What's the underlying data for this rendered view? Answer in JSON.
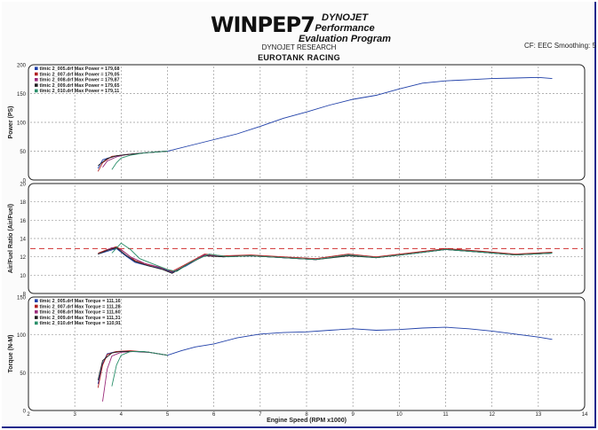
{
  "header": {
    "brand": "WINPEP7",
    "tagline_1": "DYNOJET Performance",
    "tagline_2": "Evaluation Program",
    "research": "DYNOJET RESEARCH",
    "company": "EUROTANK RACING",
    "correction": "CF: EEC  Smoothing: 5"
  },
  "chart_data": [
    {
      "type": "line",
      "ylabel": "Power (PS)",
      "ylim": [
        0,
        200
      ],
      "yticks": [
        "0",
        "50",
        "100",
        "150",
        "200"
      ],
      "grid": true,
      "legend_position": "top-left",
      "legend": [
        {
          "label": "tlmic 2_005.drf Max Power = 179,68",
          "color": "#1f3fa8"
        },
        {
          "label": "tlmic 2_007.drf Max Power = 179,05",
          "color": "#b02020"
        },
        {
          "label": "tlmic 2_008.drf Max Power = 179,87",
          "color": "#9b2a7a"
        },
        {
          "label": "tlmic 2_009.drf Max Power = 179,65",
          "color": "#202020"
        },
        {
          "label": "tlmic 2_010.drf Max Power = 179,11",
          "color": "#2a8f6a"
        }
      ],
      "series": [
        {
          "name": "tlmic 2_005.drf",
          "color": "#1f3fa8",
          "x": [
            3.5,
            3.6,
            3.8,
            4.0,
            4.5,
            5.0,
            5.5,
            6.0,
            6.5,
            7.0,
            7.5,
            8.0,
            8.5,
            9.0,
            9.5,
            10.0,
            10.5,
            11.0,
            11.5,
            12.0,
            12.5,
            13.0,
            13.3
          ],
          "y": [
            20,
            35,
            40,
            43,
            47,
            50,
            60,
            70,
            80,
            93,
            107,
            118,
            130,
            140,
            147,
            158,
            168,
            172,
            174,
            176,
            177,
            178,
            176
          ]
        },
        {
          "name": "tlmic 2_007.drf",
          "color": "#b02020",
          "x": [
            3.5,
            3.6,
            3.8,
            4.0,
            4.5,
            5.0
          ],
          "y": [
            15,
            30,
            41,
            43,
            47,
            50
          ]
        },
        {
          "name": "tlmic 2_008.drf",
          "color": "#9b2a7a",
          "x": [
            3.6,
            3.7,
            3.9,
            4.1,
            4.5,
            5.0
          ],
          "y": [
            22,
            33,
            40,
            44,
            47,
            50
          ]
        },
        {
          "name": "tlmic 2_009.drf",
          "color": "#202020",
          "x": [
            3.5,
            3.7,
            3.9,
            4.1,
            4.5,
            5.0
          ],
          "y": [
            25,
            37,
            42,
            44,
            47,
            50
          ]
        },
        {
          "name": "tlmic 2_010.drf",
          "color": "#2a8f6a",
          "x": [
            3.8,
            3.9,
            4.0,
            4.2,
            4.5,
            5.0
          ],
          "y": [
            18,
            30,
            38,
            43,
            47,
            50
          ]
        }
      ]
    },
    {
      "type": "line",
      "ylabel": "Air/Fuel Ratio (Air/Fuel)",
      "ylim": [
        8,
        20
      ],
      "yticks": [
        "8",
        "10",
        "12",
        "14",
        "16",
        "18",
        "20"
      ],
      "reference_line": 12.9,
      "grid": true,
      "series": [
        {
          "name": "tlmic 2_005.drf",
          "color": "#1f3fa8",
          "x": [
            3.5,
            3.7,
            3.9,
            4.1,
            4.3,
            4.6,
            4.9,
            5.1,
            5.4,
            5.8,
            6.2,
            6.8,
            7.5,
            8.2,
            8.9,
            9.5,
            10.2,
            11.0,
            11.8,
            12.5,
            13.3
          ],
          "y": [
            12.3,
            12.6,
            12.9,
            12.1,
            11.4,
            11.0,
            10.7,
            10.3,
            11.0,
            12.2,
            12.0,
            12.1,
            11.9,
            11.7,
            12.2,
            11.9,
            12.3,
            12.8,
            12.5,
            12.2,
            12.4
          ]
        },
        {
          "name": "tlmic 2_007.drf",
          "color": "#b02020",
          "x": [
            3.5,
            3.7,
            3.9,
            4.1,
            4.3,
            4.6,
            4.9,
            5.1,
            5.4,
            5.8,
            6.2,
            6.8,
            7.5,
            8.2,
            8.9,
            9.5,
            10.2,
            11.0,
            11.8,
            12.5,
            13.3
          ],
          "y": [
            12.4,
            12.8,
            13.1,
            12.4,
            11.6,
            11.1,
            10.8,
            10.4,
            11.2,
            12.3,
            12.1,
            12.2,
            12.0,
            11.8,
            12.3,
            12.0,
            12.4,
            12.9,
            12.6,
            12.3,
            12.5
          ]
        },
        {
          "name": "tlmic 2_008.drf",
          "color": "#9b2a7a",
          "x": [
            3.6,
            3.8,
            4.0,
            4.2,
            4.5,
            4.8,
            5.1,
            5.4,
            5.8,
            6.2,
            6.8,
            7.5,
            8.2,
            8.9,
            9.5,
            10.2,
            11.0,
            11.8,
            12.5,
            13.3
          ],
          "y": [
            12.5,
            13.0,
            12.8,
            12.0,
            11.3,
            10.9,
            10.2,
            11.1,
            12.2,
            12.0,
            12.1,
            11.9,
            11.7,
            12.2,
            11.9,
            12.3,
            12.8,
            12.5,
            12.2,
            12.4
          ]
        },
        {
          "name": "tlmic 2_009.drf",
          "color": "#202020",
          "x": [
            3.5,
            3.7,
            3.9,
            4.1,
            4.3,
            4.6,
            4.9,
            5.1,
            5.4,
            5.8,
            6.2,
            6.8,
            7.5,
            8.2,
            8.9,
            9.5,
            10.2,
            11.0,
            11.8,
            12.5,
            13.3
          ],
          "y": [
            12.3,
            12.7,
            13.0,
            12.2,
            11.5,
            11.0,
            10.6,
            10.2,
            11.1,
            12.1,
            12.0,
            12.1,
            11.9,
            11.7,
            12.1,
            11.9,
            12.3,
            12.8,
            12.5,
            12.2,
            12.4
          ]
        },
        {
          "name": "tlmic 2_010.drf",
          "color": "#2a8f6a",
          "x": [
            3.8,
            4.0,
            4.2,
            4.4,
            4.7,
            5.0,
            5.2,
            5.5,
            5.9,
            6.3,
            6.8,
            7.5,
            8.2,
            8.9,
            9.5,
            10.2,
            11.0,
            11.8,
            12.5,
            13.3
          ],
          "y": [
            12.4,
            13.5,
            12.8,
            11.8,
            11.2,
            10.6,
            10.4,
            11.4,
            12.3,
            12.0,
            12.1,
            11.9,
            11.7,
            12.2,
            11.9,
            12.3,
            12.8,
            12.5,
            12.2,
            12.4
          ]
        }
      ]
    },
    {
      "type": "line",
      "ylabel": "Torque (N-M)",
      "xlabel": "Engine Speed (RPM x1000)",
      "xlim": [
        2,
        14
      ],
      "xticks": [
        "2",
        "3",
        "4",
        "5",
        "6",
        "7",
        "8",
        "9",
        "10",
        "11",
        "12",
        "13",
        "14"
      ],
      "ylim": [
        0,
        150
      ],
      "yticks": [
        "0",
        "50",
        "100",
        "150"
      ],
      "grid": true,
      "legend_position": "top-left",
      "legend": [
        {
          "label": "tlmic 2_005.drf Max Torque = 111,16",
          "color": "#1f3fa8"
        },
        {
          "label": "tlmic 2_007.drf Max Torque = 111,28",
          "color": "#b02020"
        },
        {
          "label": "tlmic 2_008.drf Max Torque = 111,60",
          "color": "#9b2a7a"
        },
        {
          "label": "tlmic 2_009.drf Max Torque = 111,31",
          "color": "#202020"
        },
        {
          "label": "tlmic 2_010.drf Max Torque = 110,91",
          "color": "#2a8f6a"
        }
      ],
      "series": [
        {
          "name": "tlmic 2_005.drf",
          "color": "#1f3fa8",
          "x": [
            3.5,
            3.6,
            3.7,
            3.9,
            4.2,
            4.6,
            5.0,
            5.3,
            5.6,
            6.0,
            6.5,
            7.0,
            7.5,
            8.0,
            8.5,
            9.0,
            9.5,
            10.0,
            10.5,
            11.0,
            11.5,
            12.0,
            12.5,
            13.0,
            13.3
          ],
          "y": [
            35,
            62,
            75,
            78,
            78,
            77,
            73,
            79,
            84,
            88,
            96,
            101,
            103,
            104,
            106,
            108,
            106,
            107,
            109,
            110,
            108,
            105,
            101,
            97,
            94
          ]
        },
        {
          "name": "tlmic 2_007.drf",
          "color": "#b02020",
          "x": [
            3.5,
            3.6,
            3.7,
            3.9,
            4.2,
            4.6,
            5.0
          ],
          "y": [
            30,
            60,
            74,
            78,
            79,
            77,
            73
          ]
        },
        {
          "name": "tlmic 2_008.drf",
          "color": "#9b2a7a",
          "x": [
            3.6,
            3.7,
            3.8,
            4.0,
            4.3,
            4.6,
            5.0
          ],
          "y": [
            12,
            55,
            72,
            77,
            78,
            77,
            73
          ]
        },
        {
          "name": "tlmic 2_009.drf",
          "color": "#202020",
          "x": [
            3.5,
            3.6,
            3.8,
            4.0,
            4.3,
            4.6,
            5.0
          ],
          "y": [
            40,
            66,
            76,
            78,
            78,
            77,
            73
          ]
        },
        {
          "name": "tlmic 2_010.drf",
          "color": "#2a8f6a",
          "x": [
            3.8,
            3.9,
            4.0,
            4.2,
            4.5,
            5.0
          ],
          "y": [
            32,
            60,
            73,
            78,
            78,
            73
          ]
        }
      ]
    }
  ]
}
